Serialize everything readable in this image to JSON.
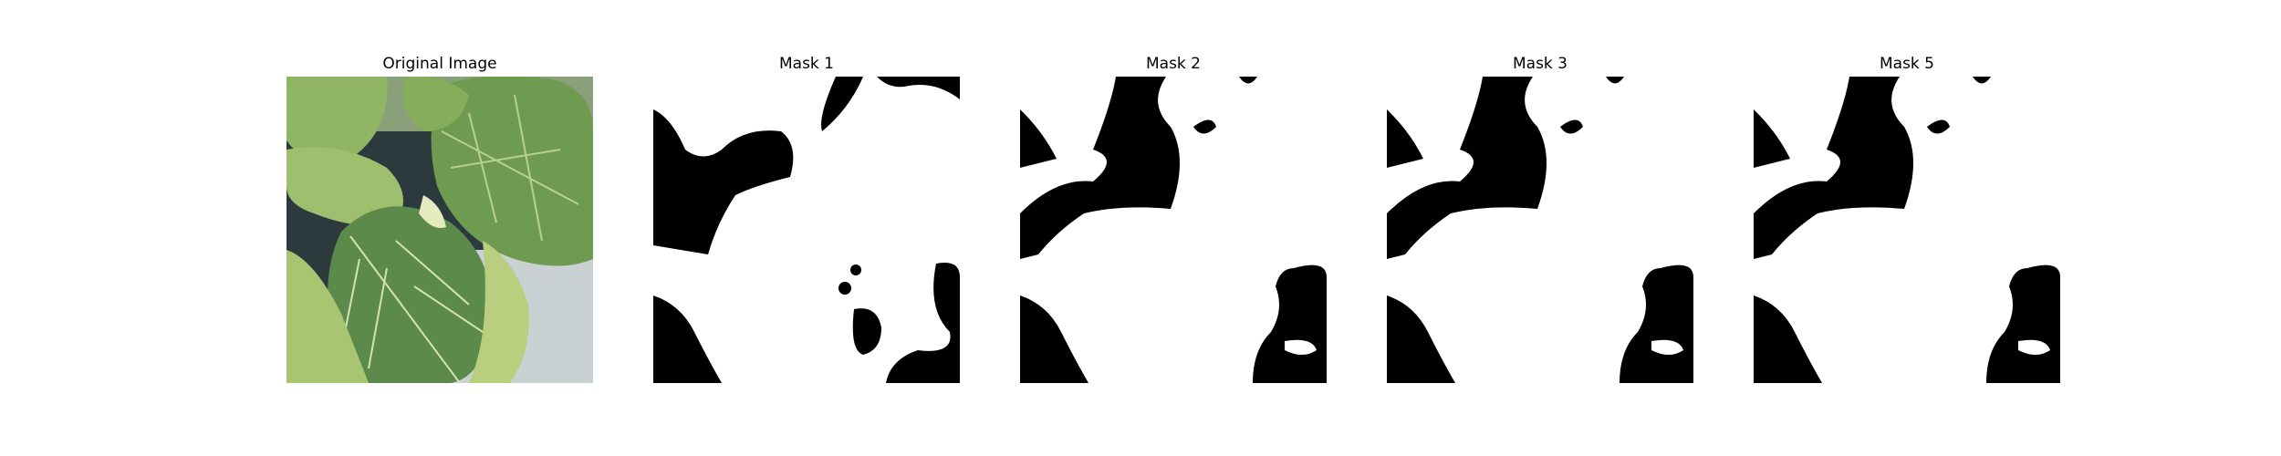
{
  "figure": {
    "panels": [
      {
        "title": "Original Image",
        "kind": "photo"
      },
      {
        "title": "Mask 1",
        "kind": "mask"
      },
      {
        "title": "Mask 2",
        "kind": "mask"
      },
      {
        "title": "Mask 3",
        "kind": "mask"
      },
      {
        "title": "Mask 5",
        "kind": "mask"
      }
    ]
  },
  "colors": {
    "background": "#ffffff",
    "mask_fg": "#ffffff",
    "mask_bg": "#000000",
    "leaf_dark": "#5f8a4a",
    "leaf_light": "#a9c77a",
    "leaf_vein": "#dfe9c4",
    "shadow": "#26323a"
  }
}
